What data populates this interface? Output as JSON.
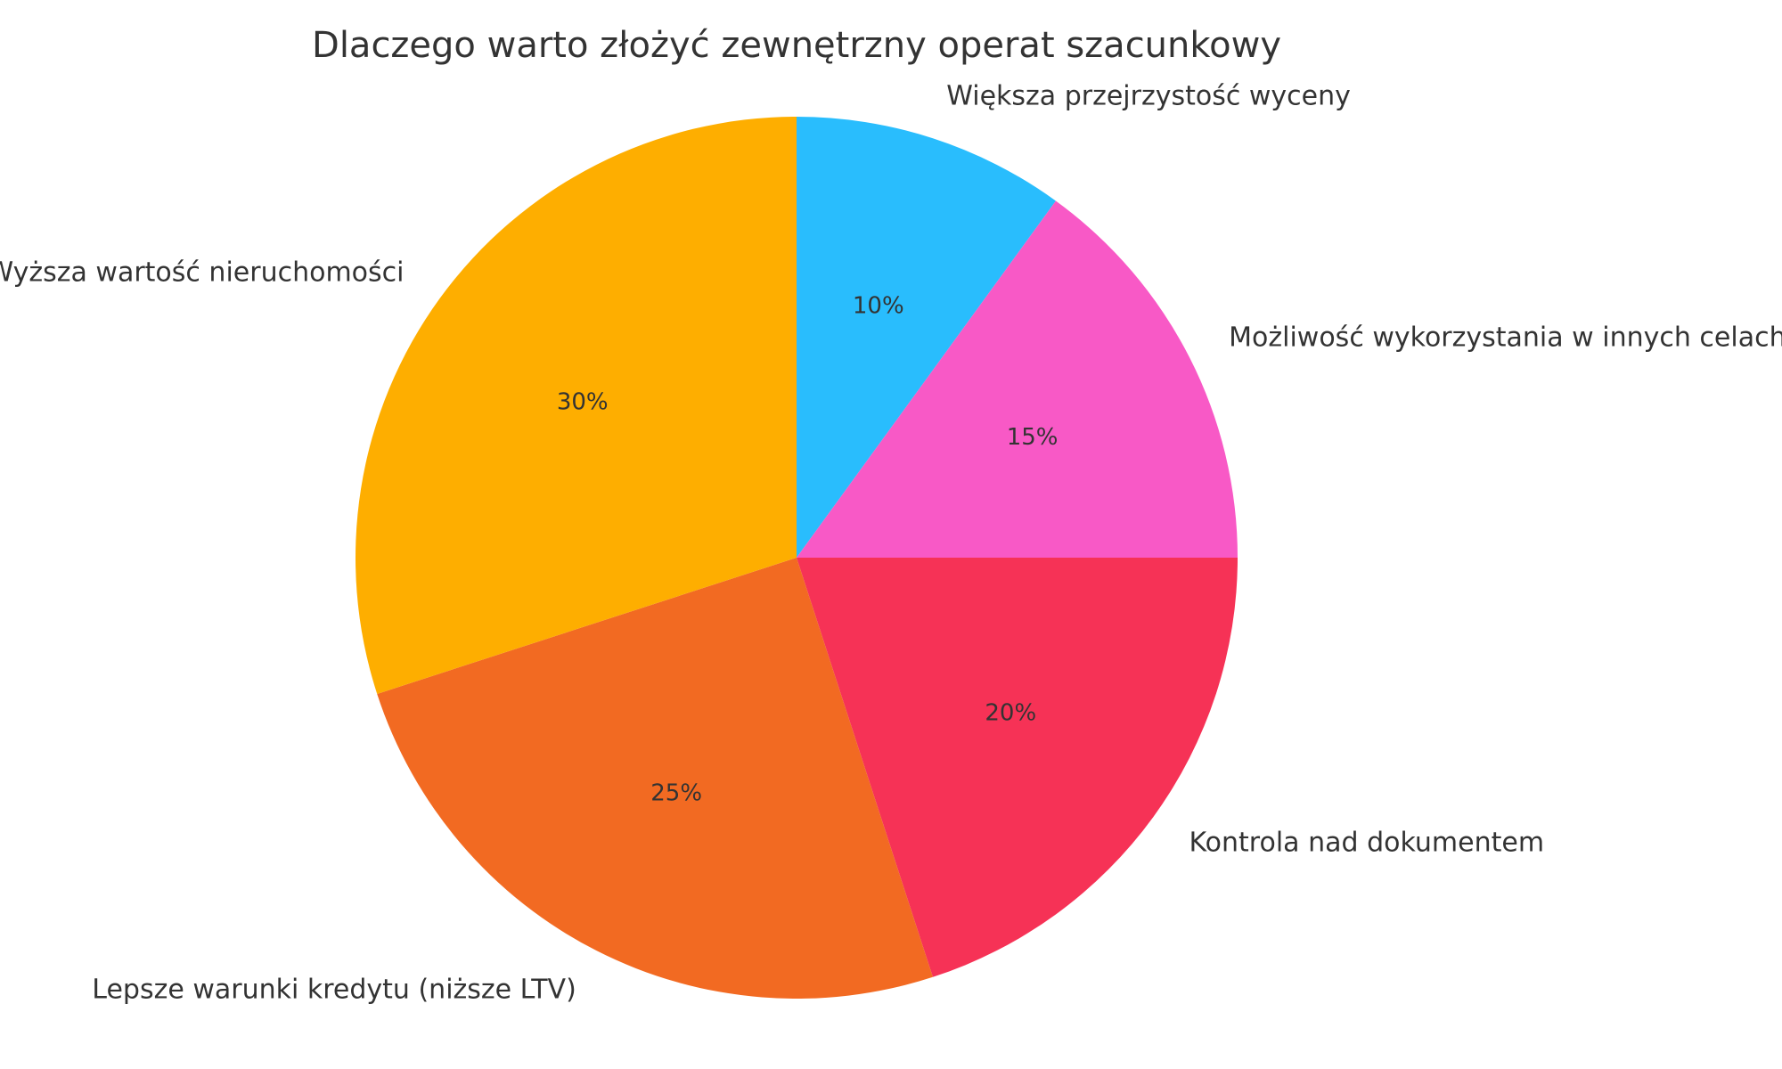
{
  "chart_data": {
    "type": "pie",
    "title": "Dlaczego warto złożyć zewnętrzny operat szacunkowy",
    "start": "top",
    "direction": "clockwise",
    "categories": [
      "Większa przejrzystość wyceny",
      "Możliwość wykorzystania w innych celach",
      "Kontrola nad dokumentem",
      "Lepsze warunki kredytu (niższe LTV)",
      "Wyższa wartość nieruchomości"
    ],
    "values": [
      10,
      15,
      20,
      25,
      30
    ],
    "labels": [
      "10%",
      "15%",
      "20%",
      "25%",
      "30%"
    ],
    "colors": [
      "#29BDFD",
      "#F859C6",
      "#F63256",
      "#F26A22",
      "#FEAE00"
    ]
  }
}
